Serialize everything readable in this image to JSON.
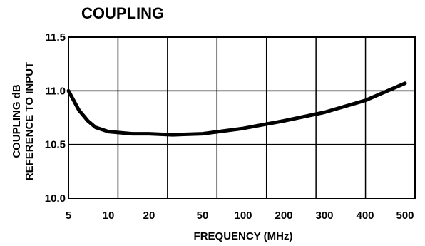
{
  "chart_data": {
    "type": "line",
    "title": "COUPLING",
    "xlabel": "FREQUENCY (MHz)",
    "ylabel_lines": [
      "COUPLING dB",
      "REFERENCE TO INPUT"
    ],
    "x_ticks": [
      "5",
      "10",
      "20",
      "50",
      "100",
      "200",
      "300",
      "400",
      "500"
    ],
    "y_ticks": [
      "10.0",
      "10.5",
      "11.0",
      "11.5"
    ],
    "ylim": [
      10.0,
      11.5
    ],
    "grid": true,
    "series": [
      {
        "x": [
          5,
          6,
          7,
          8,
          10,
          15,
          20,
          30,
          50,
          100,
          200,
          300,
          400,
          500
        ],
        "y": [
          11.0,
          10.82,
          10.72,
          10.66,
          10.62,
          10.6,
          10.6,
          10.59,
          10.6,
          10.65,
          10.72,
          10.8,
          10.91,
          11.07
        ]
      }
    ]
  }
}
